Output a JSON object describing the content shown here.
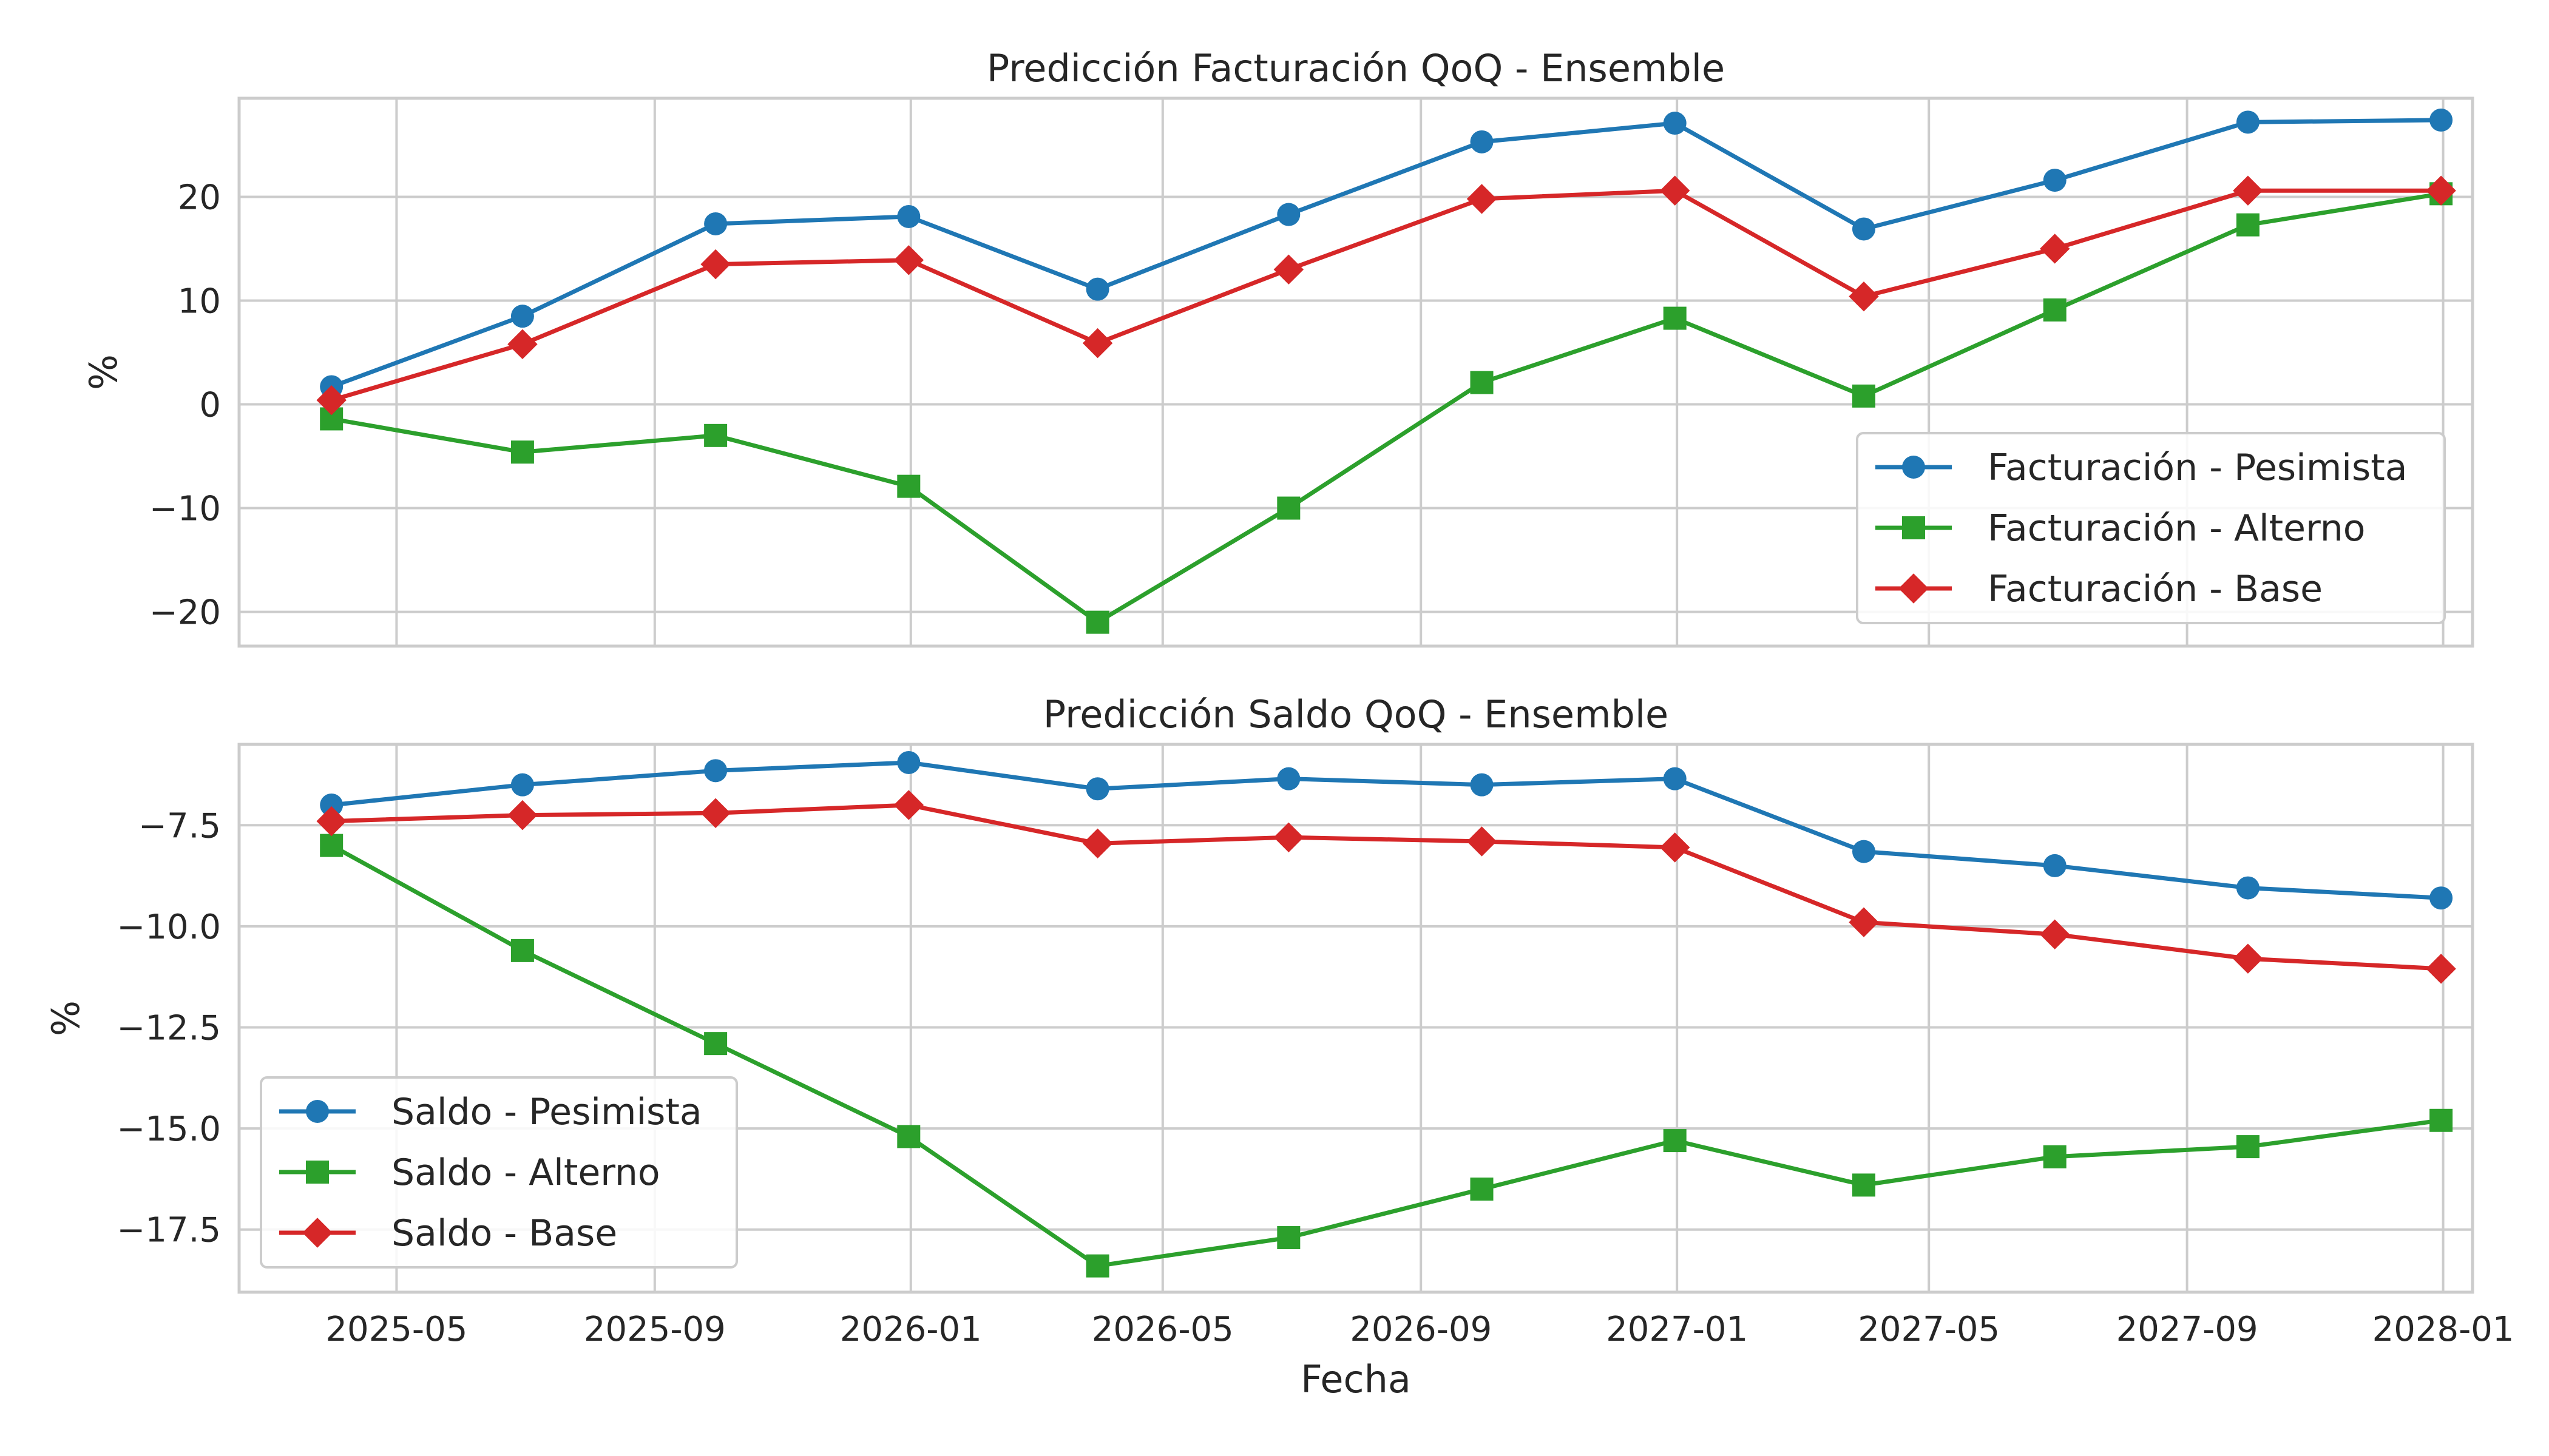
{
  "chart_data": [
    {
      "type": "line",
      "title": "Predicción Facturación QoQ - Ensemble",
      "xlabel": "",
      "ylabel": "%",
      "ylim": [
        -23.3,
        29.5
      ],
      "yticks": [
        20,
        10,
        0,
        -10,
        -20
      ],
      "yticks_label": [
        "20",
        "10",
        "0",
        "−10",
        "−20"
      ],
      "grid": true,
      "legend_position": "lower-right",
      "x": [
        "2025-03-31",
        "2025-06-30",
        "2025-09-30",
        "2025-12-31",
        "2026-03-31",
        "2026-06-30",
        "2026-09-30",
        "2026-12-31",
        "2027-03-31",
        "2027-06-30",
        "2027-09-30",
        "2027-12-31"
      ],
      "series": [
        {
          "name": "Facturación - Pesimista",
          "color": "#1f77b4",
          "marker": "circle",
          "values": [
            1.7,
            8.5,
            17.4,
            18.1,
            11.1,
            18.3,
            25.3,
            27.1,
            16.9,
            21.6,
            27.2,
            27.4
          ]
        },
        {
          "name": "Facturación - Alterno",
          "color": "#2ca02c",
          "marker": "square",
          "values": [
            -1.4,
            -4.6,
            -3.0,
            -7.9,
            -21.0,
            -10.0,
            2.1,
            8.3,
            0.8,
            9.1,
            17.3,
            20.3
          ]
        },
        {
          "name": "Facturación - Base",
          "color": "#d62728",
          "marker": "diamond",
          "values": [
            0.4,
            5.8,
            13.5,
            13.9,
            5.9,
            13.0,
            19.8,
            20.6,
            10.4,
            15.0,
            20.6,
            20.6
          ]
        }
      ]
    },
    {
      "type": "line",
      "title": "Predicción Saldo QoQ - Ensemble",
      "xlabel": "Fecha",
      "ylabel": "%",
      "ylim": [
        -19.05,
        -5.5
      ],
      "yticks": [
        -7.5,
        -10.0,
        -12.5,
        -15.0,
        -17.5
      ],
      "yticks_label": [
        "−7.5",
        "−10.0",
        "−12.5",
        "−15.0",
        "−17.5"
      ],
      "grid": true,
      "legend_position": "lower-left",
      "x": [
        "2025-03-31",
        "2025-06-30",
        "2025-09-30",
        "2025-12-31",
        "2026-03-31",
        "2026-06-30",
        "2026-09-30",
        "2026-12-31",
        "2027-03-31",
        "2027-06-30",
        "2027-09-30",
        "2027-12-31"
      ],
      "xticks": [
        "2025-05-01",
        "2025-09-01",
        "2026-01-01",
        "2026-05-01",
        "2026-09-01",
        "2027-01-01",
        "2027-05-01",
        "2027-09-01",
        "2028-01-01"
      ],
      "xticks_label": [
        "2025-05",
        "2025-09",
        "2026-01",
        "2026-05",
        "2026-09",
        "2027-01",
        "2027-05",
        "2027-09",
        "2028-01"
      ],
      "series": [
        {
          "name": "Saldo - Pesimista",
          "color": "#1f77b4",
          "marker": "circle",
          "values": [
            -7.0,
            -6.5,
            -6.15,
            -5.95,
            -6.6,
            -6.35,
            -6.5,
            -6.35,
            -8.15,
            -8.5,
            -9.05,
            -9.3
          ]
        },
        {
          "name": "Saldo - Alterno",
          "color": "#2ca02c",
          "marker": "square",
          "values": [
            -8.0,
            -10.6,
            -12.9,
            -15.2,
            -18.4,
            -17.7,
            -16.5,
            -15.3,
            -16.4,
            -15.7,
            -15.45,
            -14.8
          ]
        },
        {
          "name": "Saldo - Base",
          "color": "#d62728",
          "marker": "diamond",
          "values": [
            -7.4,
            -7.25,
            -7.2,
            -7.0,
            -7.95,
            -7.8,
            -7.9,
            -8.05,
            -9.9,
            -10.2,
            -10.8,
            -11.05
          ]
        }
      ]
    }
  ]
}
